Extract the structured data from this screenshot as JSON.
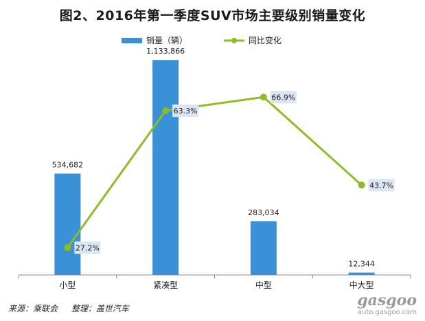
{
  "title": "图2、2016年第一季度SUV市场主要级别销量变化",
  "legend": {
    "bars_label": "销量（辆）",
    "line_label": "同比变化"
  },
  "colors": {
    "bar": "#3b91d6",
    "line": "#8cbc26",
    "label_bg": "#dbe6f2",
    "axis": "#888888"
  },
  "chart_data": {
    "type": "bar",
    "categories": [
      "小型",
      "紧凑型",
      "中型",
      "中大型"
    ],
    "series": [
      {
        "name": "销量（辆）",
        "type": "bar",
        "values": [
          534682,
          1133866,
          283034,
          12344
        ],
        "labels": [
          "534,682",
          "1,133,866",
          "283,034",
          "12,344"
        ]
      },
      {
        "name": "同比变化",
        "type": "line",
        "values": [
          27.2,
          63.3,
          66.9,
          43.7
        ],
        "labels": [
          "27.2%",
          "63.3%",
          "66.9%",
          "43.7%"
        ]
      }
    ],
    "ylim": [
      0,
      1200000
    ],
    "y2lim": [
      20,
      80
    ],
    "grid": false,
    "legend_position": "top"
  },
  "footer": {
    "source": "来源：乘联会",
    "compiler": "整理：盖世汽车"
  },
  "watermark": {
    "logo": "gasgoo",
    "url": "auto.gasgoo.com"
  }
}
